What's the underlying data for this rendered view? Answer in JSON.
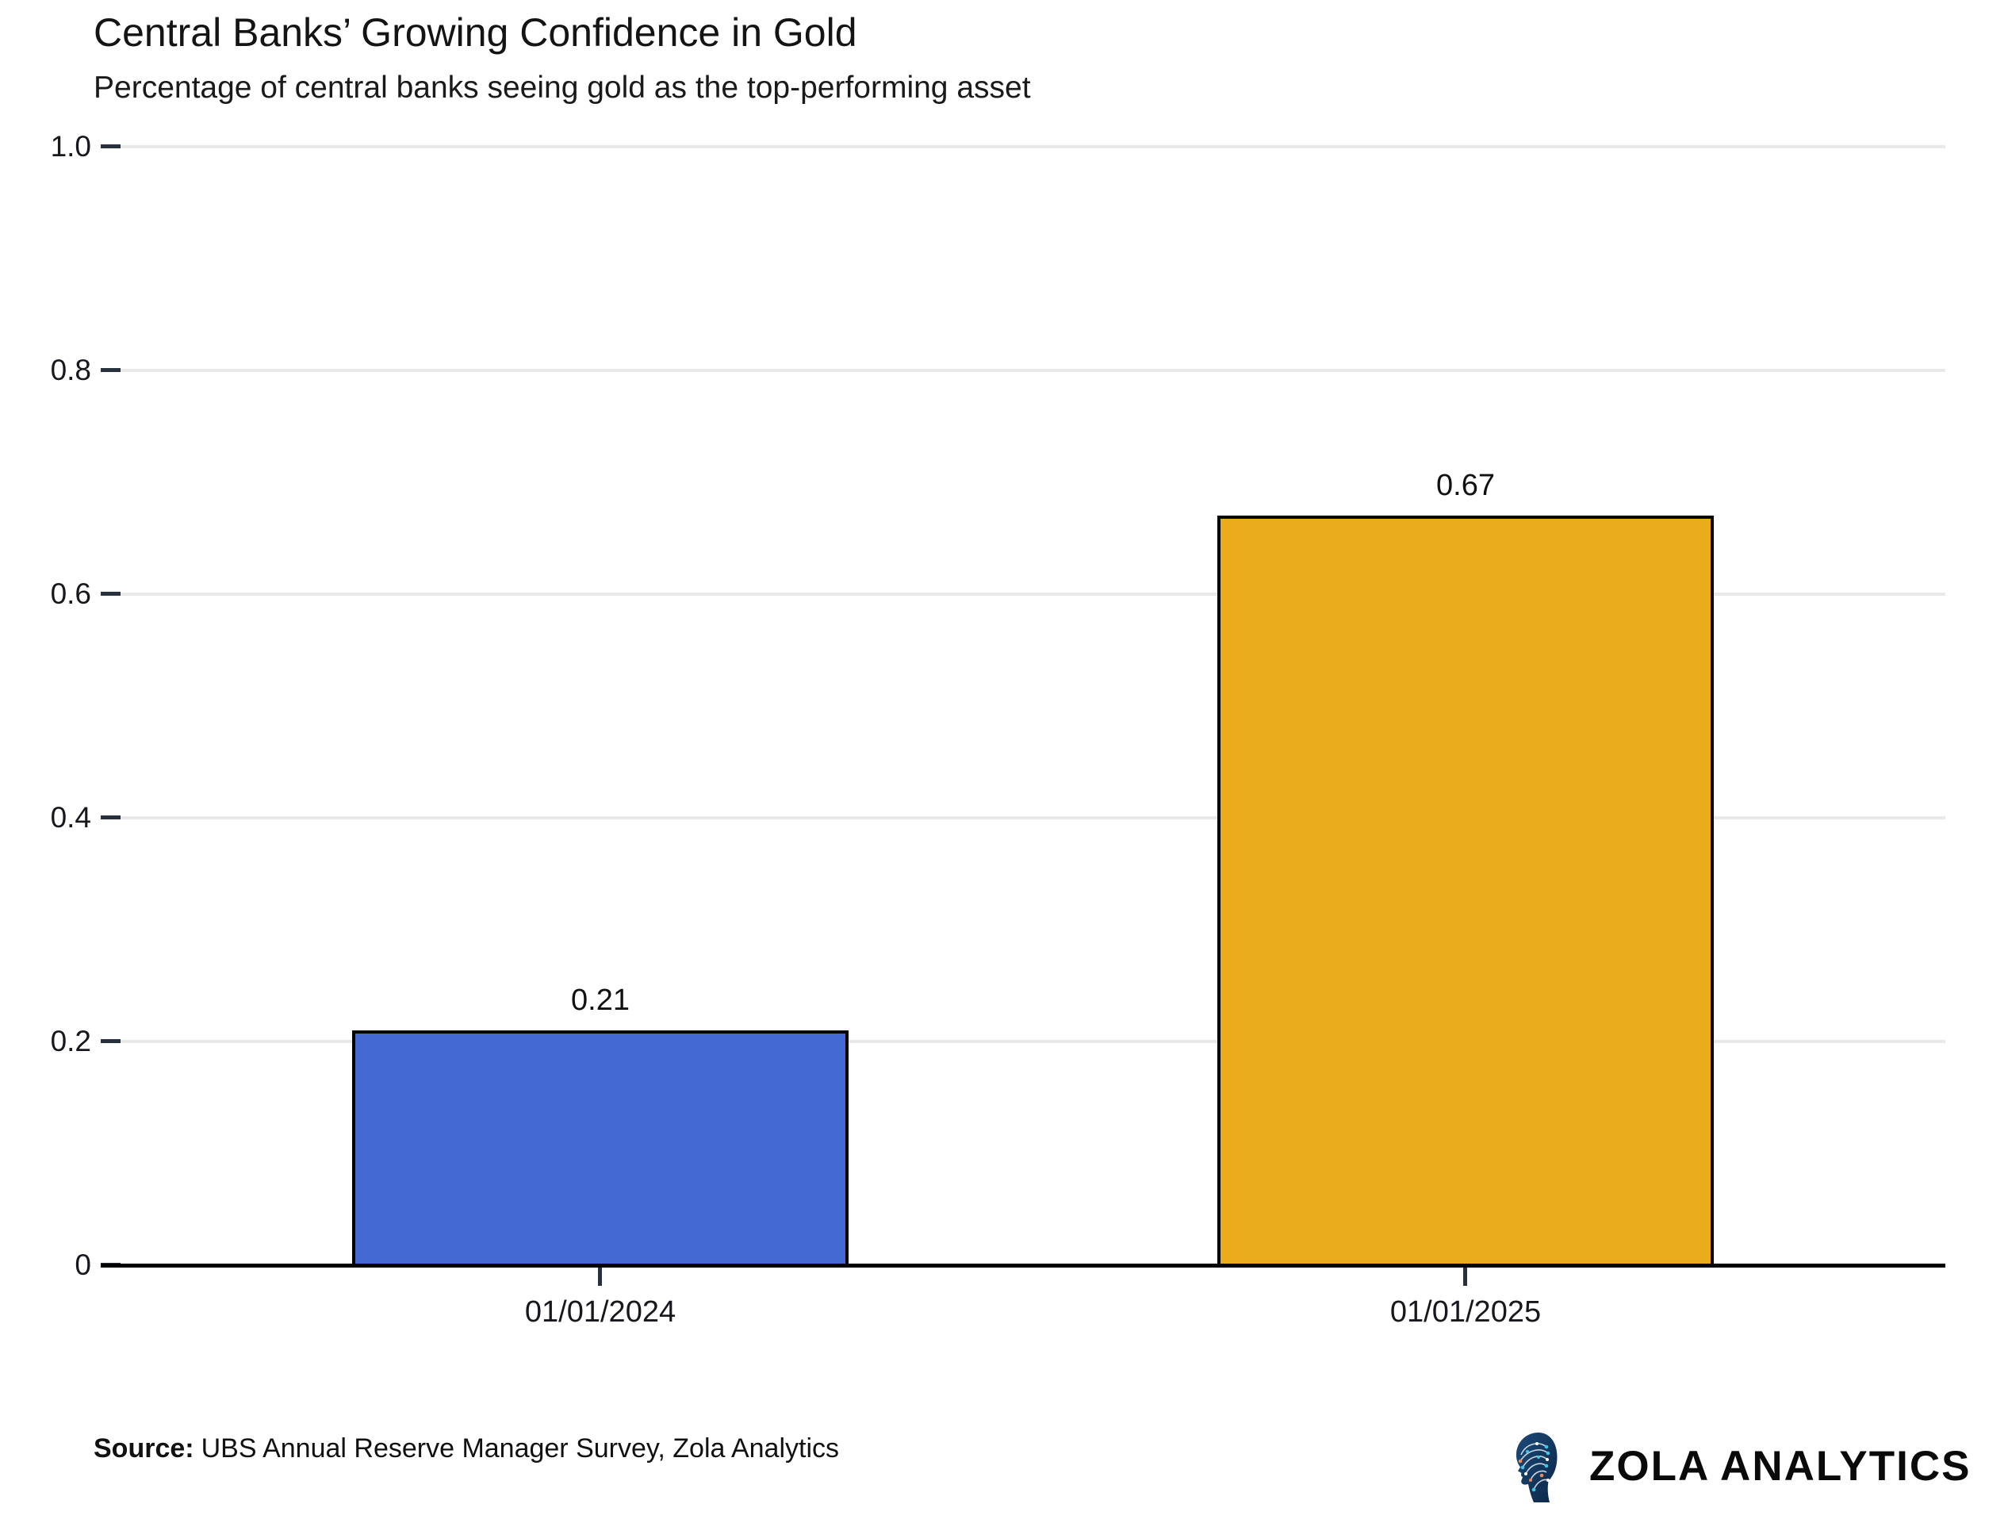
{
  "header": {
    "title": "Central Banks’ Growing Confidence in Gold",
    "subtitle": "Percentage of central banks seeing gold as the top-performing asset"
  },
  "chart_data": {
    "type": "bar",
    "title": "Central Banks’ Growing Confidence in Gold",
    "subtitle": "Percentage of central banks seeing gold as the top-performing asset",
    "categories": [
      "01/01/2024",
      "01/01/2025"
    ],
    "values": [
      0.21,
      0.67
    ],
    "bar_labels": [
      "0.21",
      "0.67"
    ],
    "bar_colors": [
      "#4269D1",
      "#EBAC1C"
    ],
    "bar_border_color": "#000000",
    "xlabel": "",
    "ylabel": "",
    "ylim": [
      0,
      1.0
    ],
    "yticks": [
      {
        "value": 0,
        "label": "0"
      },
      {
        "value": 0.2,
        "label": "0.2"
      },
      {
        "value": 0.4,
        "label": "0.4"
      },
      {
        "value": 0.6,
        "label": "0.6"
      },
      {
        "value": 0.8,
        "label": "0.8"
      },
      {
        "value": 1.0,
        "label": "1.0"
      }
    ],
    "grid": "horizontal",
    "grid_color": "#e9e9e9",
    "axis_color": "#000000",
    "tick_color": "#29303d",
    "legend": "none"
  },
  "footer": {
    "source_label": "Source:",
    "source_text": "UBS Annual Reserve Manager Survey, Zola Analytics",
    "brand_name": "ZOLA ANALYTICS",
    "brand_icon": "head-circuit-icon"
  }
}
